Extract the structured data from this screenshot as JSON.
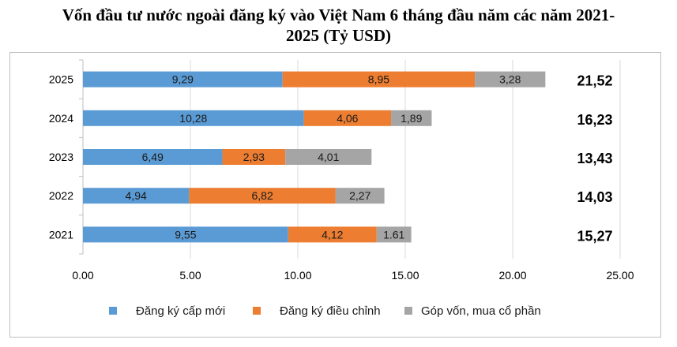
{
  "chart_data": {
    "type": "bar",
    "orientation": "horizontal",
    "stacked": true,
    "title": "Vốn đầu tư nước ngoài đăng ký vào Việt Nam 6 tháng đầu năm các năm 2021-2025 (Tỷ USD)",
    "title_lines": [
      "Vốn đầu tư nước ngoài đăng ký vào Việt Nam 6 tháng đầu năm các năm 2021-",
      "2025 (Tỷ USD)"
    ],
    "categories": [
      "2025",
      "2024",
      "2023",
      "2022",
      "2021"
    ],
    "series": [
      {
        "name": "Đăng ký cấp mới",
        "color": "#5b9bd5",
        "values": [
          9.29,
          10.28,
          6.49,
          4.94,
          9.55
        ],
        "labels": [
          "9,29",
          "10,28",
          "6,49",
          "4,94",
          "9,55"
        ]
      },
      {
        "name": "Đăng ký điều chỉnh",
        "color": "#ed7d31",
        "values": [
          8.95,
          4.06,
          2.93,
          6.82,
          4.12
        ],
        "labels": [
          "8,95",
          "4,06",
          "2,93",
          "6,82",
          "4,12"
        ]
      },
      {
        "name": "Góp vốn, mua cổ phần",
        "color": "#a5a5a5",
        "values": [
          3.28,
          1.89,
          4.01,
          2.27,
          1.61
        ],
        "labels": [
          "3,28",
          "1,89",
          "4,01",
          "2,27",
          "1.61"
        ]
      }
    ],
    "totals": [
      "21,52",
      "16,23",
      "13,43",
      "14,03",
      "15,27"
    ],
    "xlim": [
      0,
      25
    ],
    "xticks": [
      "0.00",
      "5.00",
      "10.00",
      "15.00",
      "20.00",
      "25.00"
    ],
    "grid": "vertical",
    "legend": "bottom"
  }
}
